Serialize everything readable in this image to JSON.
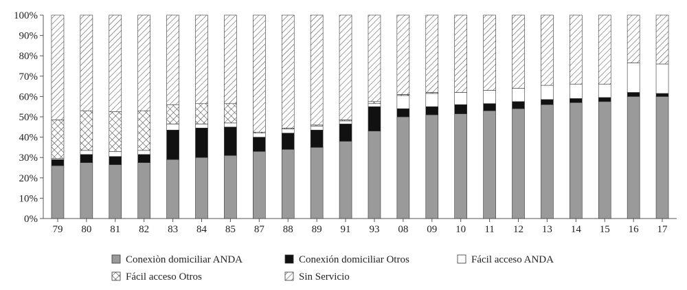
{
  "chart_data": {
    "type": "bar",
    "stacked": true,
    "percent": true,
    "title": "",
    "xlabel": "",
    "ylabel": "",
    "ylim": [
      0,
      100
    ],
    "yticks": [
      "0%",
      "10%",
      "20%",
      "30%",
      "40%",
      "50%",
      "60%",
      "70%",
      "80%",
      "90%",
      "100%"
    ],
    "grid": false,
    "legend_position": "bottom",
    "categories": [
      "79",
      "80",
      "81",
      "82",
      "83",
      "84",
      "85",
      "87",
      "88",
      "89",
      "91",
      "93",
      "08",
      "09",
      "10",
      "11",
      "12",
      "13",
      "14",
      "15",
      "16",
      "17"
    ],
    "series": [
      {
        "name": "Conexiòn domiciliar ANDA",
        "pattern": "gray",
        "color": "#9a9a9a",
        "values": [
          26,
          27.5,
          26.5,
          27.5,
          29,
          30,
          31,
          33,
          34,
          35,
          38,
          43,
          50,
          51,
          51.5,
          53,
          54,
          56,
          57,
          57.5,
          60,
          60
        ]
      },
      {
        "name": "Conexión domiciliar Otros",
        "pattern": "black",
        "color": "#111111",
        "values": [
          3,
          4,
          4,
          4,
          14.5,
          14.5,
          14,
          7,
          8,
          8.5,
          8.5,
          12,
          4,
          4,
          4.5,
          3.5,
          3.5,
          2.5,
          2,
          2,
          2,
          1.5
        ]
      },
      {
        "name": "Fácil acceso ANDA",
        "pattern": "white",
        "color": "#ffffff",
        "values": [
          0.5,
          2,
          2.5,
          2,
          3,
          2,
          2,
          2,
          2,
          2,
          1.5,
          1.5,
          6.5,
          6.5,
          6,
          6.5,
          6.5,
          7,
          7,
          6.5,
          14.5,
          14.5
        ]
      },
      {
        "name": "Fácil acceso Otros",
        "pattern": "crosshatch",
        "color": "#ffffff",
        "values": [
          19,
          19.5,
          19.5,
          19.5,
          9.5,
          10,
          9.5,
          0.5,
          0.5,
          0.5,
          0.5,
          1,
          0.5,
          0.5,
          0,
          0,
          0,
          0,
          0,
          0,
          0,
          0
        ]
      },
      {
        "name": "Sin Servicio",
        "pattern": "diagonal",
        "color": "#ffffff",
        "values": [
          51.5,
          47,
          47.5,
          47,
          44,
          43.5,
          43.5,
          57.5,
          55.5,
          54,
          51.5,
          42.5,
          39,
          38,
          38,
          37,
          36,
          34.5,
          34,
          34,
          23.5,
          24
        ]
      }
    ]
  }
}
